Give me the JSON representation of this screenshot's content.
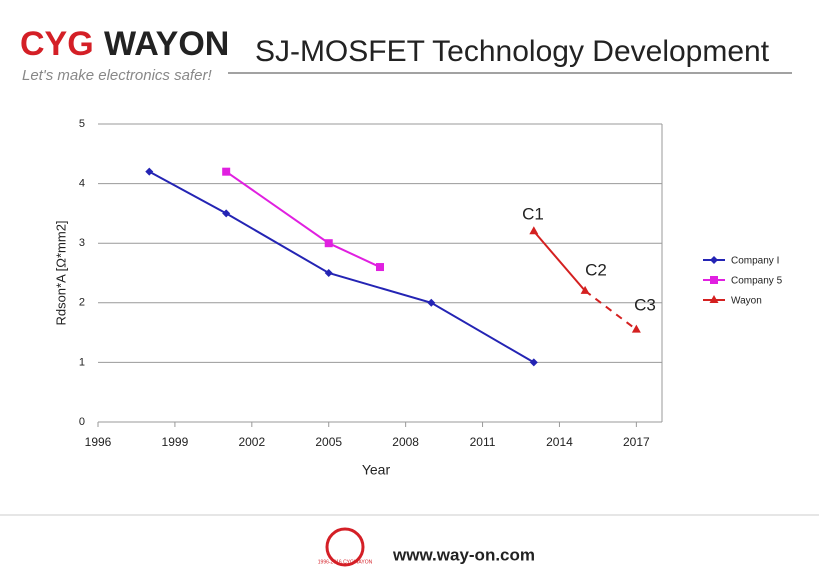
{
  "header": {
    "logo_left": "CYG",
    "logo_right": "WAYON",
    "tagline": "Let's make electronics safer!",
    "title": "SJ-MOSFET Technology Development"
  },
  "chart_data": {
    "type": "line",
    "x_label": "Year",
    "y_label": "Rdson*A [Ω*mm2]",
    "xlim": [
      1996,
      2018
    ],
    "xticks": [
      1996,
      1999,
      2002,
      2005,
      2008,
      2011,
      2014,
      2017
    ],
    "ylim": [
      0,
      5
    ],
    "yticks": [
      0,
      1,
      2,
      3,
      4,
      5
    ],
    "grid": true,
    "series": [
      {
        "name": "Company I",
        "color": "#2424b4",
        "marker": "diamond",
        "x": [
          1998,
          2001,
          2005,
          2009,
          2013
        ],
        "values": [
          4.2,
          3.5,
          2.5,
          2.0,
          1.0
        ]
      },
      {
        "name": "Company 5",
        "color": "#e020e0",
        "marker": "square",
        "x": [
          2001,
          2005,
          2007
        ],
        "values": [
          4.2,
          3.0,
          2.6
        ]
      },
      {
        "name": "Wayon",
        "color": "#d42020",
        "marker": "triangle",
        "dash_from": 1,
        "x": [
          2013,
          2015,
          2017
        ],
        "values": [
          3.2,
          2.2,
          1.55
        ]
      }
    ],
    "annotations": [
      "C1",
      "C2",
      "C3"
    ]
  },
  "footer": {
    "url": "www.way-on.com",
    "badge": "1996-2016 CYGWAYON"
  }
}
